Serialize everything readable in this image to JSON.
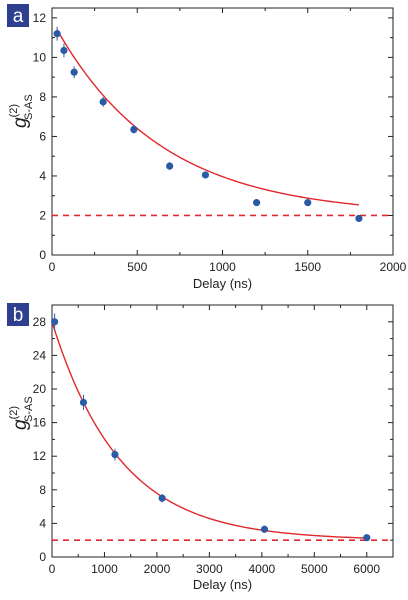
{
  "chart_data": [
    {
      "type": "scatter",
      "panel_label": "a",
      "xlabel": "Delay (ns)",
      "ylabel": "g",
      "ylabel_superscript": "(2)",
      "ylabel_subscript": "S-AS",
      "xlim": [
        0,
        2000
      ],
      "ylim": [
        0,
        12.5
      ],
      "xticks": [
        0,
        500,
        1000,
        1500,
        2000
      ],
      "yticks": [
        0,
        2,
        4,
        6,
        8,
        10,
        12
      ],
      "tick_labels_x": [
        "0",
        "500",
        "1000",
        "1500",
        "2000"
      ],
      "tick_labels_y": [
        "0",
        "2",
        "4",
        "6",
        "8",
        "10",
        "12"
      ],
      "series": [
        {
          "x": [
            30,
            70,
            130,
            300,
            480,
            690,
            900,
            1200,
            1500,
            1800
          ],
          "y": [
            11.2,
            10.35,
            9.25,
            7.75,
            6.35,
            4.5,
            4.05,
            2.65,
            2.65,
            1.85
          ],
          "yerr": [
            0.35,
            0.35,
            0.3,
            0.25,
            0.2,
            0.2,
            0.15,
            0.1,
            0.12,
            0.1
          ]
        }
      ],
      "fit": {
        "form": "exponential",
        "x_start": 30,
        "x_end": 1800,
        "offset": 2.0,
        "amplitude": 9.4,
        "tau": 620
      },
      "reference_line": {
        "y": 2,
        "style": "dashed"
      },
      "colors": {
        "points": "#2b5aa6",
        "fit": "#e0282d",
        "reference": "#e0282d",
        "label_bg": "#2f3f8f"
      }
    },
    {
      "type": "scatter",
      "panel_label": "b",
      "xlabel": "Delay (ns)",
      "ylabel": "g",
      "ylabel_superscript": "(2)",
      "ylabel_subscript": "S-AS",
      "xlim": [
        0,
        6500
      ],
      "ylim": [
        0,
        30
      ],
      "xticks": [
        0,
        1000,
        2000,
        3000,
        4000,
        5000,
        6000
      ],
      "yticks": [
        0,
        4,
        8,
        12,
        16,
        20,
        24,
        28
      ],
      "tick_labels_x": [
        "0",
        "1000",
        "2000",
        "3000",
        "4000",
        "5000",
        "6000"
      ],
      "tick_labels_y": [
        "0",
        "4",
        "8",
        "12",
        "16",
        "20",
        "24",
        "28"
      ],
      "series": [
        {
          "x": [
            50,
            600,
            1200,
            2100,
            4050,
            6000
          ],
          "y": [
            28.0,
            18.4,
            12.2,
            7.0,
            3.3,
            2.3
          ],
          "yerr": [
            1.0,
            0.9,
            0.7,
            0.5,
            0.2,
            0.2
          ]
        }
      ],
      "fit": {
        "form": "exponential",
        "x_start": 0,
        "x_end": 6000,
        "offset": 2.0,
        "amplitude": 26.0,
        "tau": 1300
      },
      "reference_line": {
        "y": 2,
        "style": "dashed"
      },
      "colors": {
        "points": "#2b5aa6",
        "fit": "#e0282d",
        "reference": "#e0282d",
        "label_bg": "#2f3f8f"
      }
    }
  ]
}
